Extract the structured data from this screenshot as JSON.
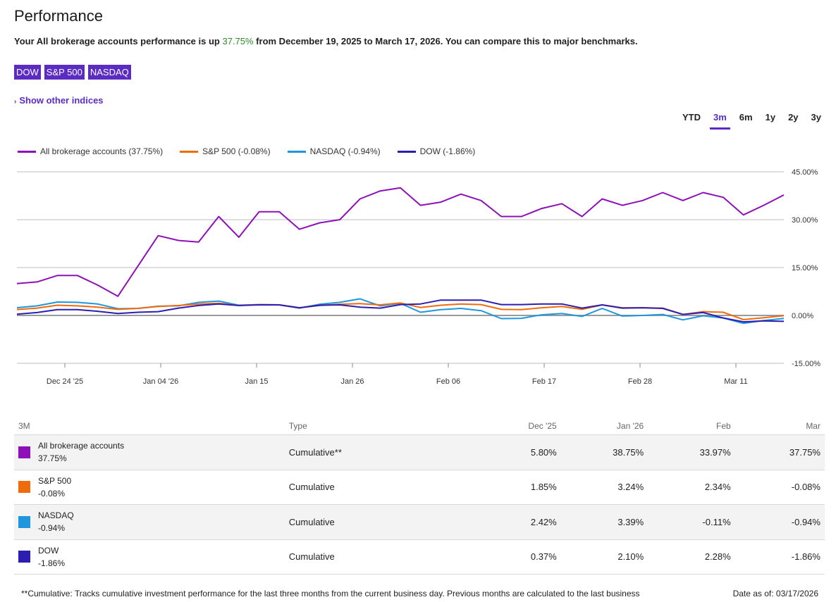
{
  "header": {
    "title": "Performance",
    "summary_prefix": "Your All brokerage accounts performance is up ",
    "summary_pct": "37.75%",
    "summary_suffix": " from December 19, 2025 to March 17, 2026. You can compare this to major benchmarks."
  },
  "benchmark_chips": [
    "DOW",
    "S&P 500",
    "NASDAQ"
  ],
  "show_other_label": "Show other indices",
  "ranges": [
    {
      "label": "YTD",
      "active": false
    },
    {
      "label": "3m",
      "active": true
    },
    {
      "label": "6m",
      "active": false
    },
    {
      "label": "1y",
      "active": false
    },
    {
      "label": "2y",
      "active": false
    },
    {
      "label": "3y",
      "active": false
    }
  ],
  "colors": {
    "accent": "#5b2bc2",
    "all": "#8e10b8",
    "sp": "#ee6c0c",
    "nasdaq": "#1f96dd",
    "dow": "#2b1eb0",
    "positive": "#2e8b2e"
  },
  "chart_data": {
    "type": "line",
    "title": "",
    "xlabel": "",
    "ylabel": "",
    "ylim": [
      -15,
      45
    ],
    "yticks": [
      "45.00%",
      "30.00%",
      "15.00%",
      "0.00%",
      "-15.00%"
    ],
    "ytick_values": [
      45,
      30,
      15,
      0,
      -15
    ],
    "xticks": [
      "Dec 24 '25",
      "Jan 04 '26",
      "Jan 15",
      "Jan 26",
      "Feb 06",
      "Feb 17",
      "Feb 28",
      "Mar 11"
    ],
    "series": [
      {
        "name": "All brokerage accounts",
        "legend": "All brokerage accounts (37.75%)",
        "color": "#8e10b8",
        "values": [
          10,
          10.5,
          12.5,
          12.5,
          9.5,
          6,
          15.5,
          25,
          23.5,
          23,
          31,
          24.5,
          32.5,
          32.5,
          27,
          29,
          30,
          36.5,
          39,
          40,
          34.5,
          35.5,
          38,
          36,
          31,
          31,
          33.5,
          35,
          31,
          36.5,
          34.5,
          36,
          38.5,
          36,
          38.5,
          37,
          31.5,
          34.5,
          37.75
        ]
      },
      {
        "name": "S&P 500",
        "legend": "S&P 500 (-0.08%)",
        "color": "#ee6c0c",
        "values": [
          1.85,
          2.3,
          3.2,
          3.0,
          2.6,
          1.9,
          2.2,
          2.8,
          3.1,
          3.6,
          3.8,
          3.1,
          3.4,
          3.3,
          2.4,
          3.1,
          3.5,
          3.7,
          3.3,
          3.9,
          2.5,
          3.2,
          3.6,
          3.4,
          1.9,
          1.8,
          2.4,
          2.8,
          1.9,
          3.3,
          2.4,
          2.4,
          2.3,
          0.3,
          1.2,
          1.0,
          -1.3,
          -0.7,
          -0.08
        ]
      },
      {
        "name": "NASDAQ",
        "legend": "NASDAQ (-0.94%)",
        "color": "#1f96dd",
        "values": [
          2.42,
          3.0,
          4.2,
          4.1,
          3.6,
          2.1,
          2.2,
          2.9,
          3.0,
          4.1,
          4.5,
          3.2,
          3.4,
          3.3,
          2.3,
          3.5,
          4.1,
          5.2,
          3.0,
          3.8,
          1.0,
          1.8,
          2.2,
          1.5,
          -1.0,
          -0.9,
          0.2,
          0.6,
          -0.3,
          2.2,
          -0.2,
          0.0,
          0.3,
          -1.4,
          -0.1,
          -0.8,
          -2.5,
          -1.6,
          -0.94
        ]
      },
      {
        "name": "DOW",
        "legend": "DOW (-1.86%)",
        "color": "#2b1eb0",
        "values": [
          0.37,
          0.9,
          1.8,
          1.8,
          1.3,
          0.6,
          1.0,
          1.2,
          2.3,
          3.1,
          3.6,
          3.1,
          3.3,
          3.3,
          2.4,
          3.2,
          3.3,
          2.6,
          2.3,
          3.4,
          3.6,
          4.8,
          4.8,
          4.8,
          3.4,
          3.4,
          3.6,
          3.6,
          2.3,
          3.3,
          2.3,
          2.4,
          2.2,
          0.3,
          0.9,
          -0.8,
          -2.0,
          -1.7,
          -1.86
        ]
      }
    ]
  },
  "table": {
    "headers": {
      "name": "3M",
      "type": "Type",
      "dec": "Dec '25",
      "jan": "Jan '26",
      "feb": "Feb",
      "mar": "Mar"
    },
    "rows": [
      {
        "name": "All brokerage accounts",
        "pct": "37.75%",
        "type": "Cumulative**",
        "dec": "5.80%",
        "jan": "38.75%",
        "feb": "33.97%",
        "mar": "37.75%",
        "color": "#8e10b8"
      },
      {
        "name": "S&P 500",
        "pct": "-0.08%",
        "type": "Cumulative",
        "dec": "1.85%",
        "jan": "3.24%",
        "feb": "2.34%",
        "mar": "-0.08%",
        "color": "#ee6c0c"
      },
      {
        "name": "NASDAQ",
        "pct": "-0.94%",
        "type": "Cumulative",
        "dec": "2.42%",
        "jan": "3.39%",
        "feb": "-0.11%",
        "mar": "-0.94%",
        "color": "#1f96dd"
      },
      {
        "name": "DOW",
        "pct": "-1.86%",
        "type": "Cumulative",
        "dec": "0.37%",
        "jan": "2.10%",
        "feb": "2.28%",
        "mar": "-1.86%",
        "color": "#2b1eb0"
      }
    ]
  },
  "footnote": "**Cumulative: Tracks cumulative investment performance for the last three months from the current business day. Previous months are calculated to the last business",
  "as_of": "Date as of: 03/17/2026"
}
